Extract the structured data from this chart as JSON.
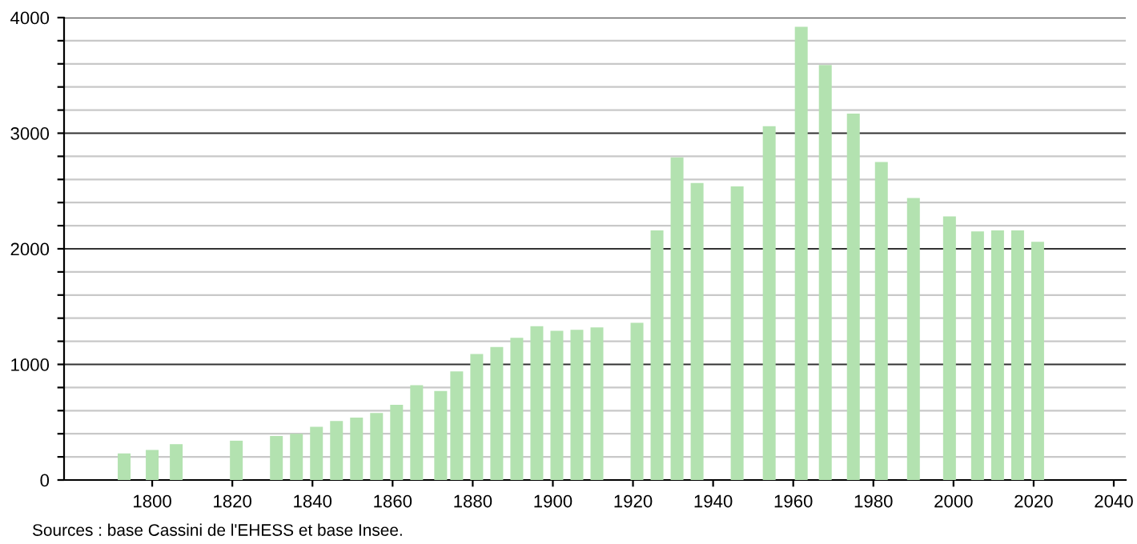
{
  "chart_data": {
    "type": "bar",
    "x": [
      1793,
      1800,
      1806,
      1821,
      1831,
      1836,
      1841,
      1846,
      1851,
      1856,
      1861,
      1866,
      1872,
      1876,
      1881,
      1886,
      1891,
      1896,
      1901,
      1906,
      1911,
      1921,
      1926,
      1931,
      1936,
      1946,
      1954,
      1962,
      1968,
      1975,
      1982,
      1990,
      1999,
      2006,
      2011,
      2016,
      2021
    ],
    "values": [
      230,
      260,
      310,
      340,
      380,
      400,
      460,
      510,
      540,
      580,
      650,
      820,
      770,
      940,
      1090,
      1150,
      1230,
      1330,
      1290,
      1300,
      1320,
      1360,
      2160,
      2790,
      2570,
      2540,
      3060,
      3920,
      3590,
      3170,
      2750,
      2440,
      2280,
      2150,
      2160,
      2160,
      2060
    ],
    "color": "#b3e2b0",
    "xlim": [
      1778,
      2043
    ],
    "xticks": [
      1800,
      1820,
      1840,
      1860,
      1880,
      1900,
      1920,
      1940,
      1960,
      1980,
      2000,
      2020,
      2040
    ],
    "ylim": [
      0,
      4000
    ],
    "yticks": [
      0,
      {
        "value": 200,
        "label": null
      },
      {
        "value": 400,
        "label": null
      },
      {
        "value": 600,
        "label": null
      },
      {
        "value": 800,
        "label": null
      },
      1000,
      {
        "value": 1200,
        "label": null
      },
      {
        "value": 1400,
        "label": null
      },
      {
        "value": 1600,
        "label": null
      },
      {
        "value": 1800,
        "label": null
      },
      2000,
      {
        "value": 2200,
        "label": null
      },
      {
        "value": 2400,
        "label": null
      },
      {
        "value": 2600,
        "label": null
      },
      {
        "value": 2800,
        "label": null
      },
      3000,
      {
        "value": 3200,
        "label": null
      },
      {
        "value": 3400,
        "label": null
      },
      {
        "value": 3600,
        "label": null
      },
      {
        "value": 3800,
        "label": null
      },
      4000
    ],
    "grid": "y",
    "annotations": [
      "Sources : base Cassini de l'EHESS et base Insee."
    ]
  }
}
